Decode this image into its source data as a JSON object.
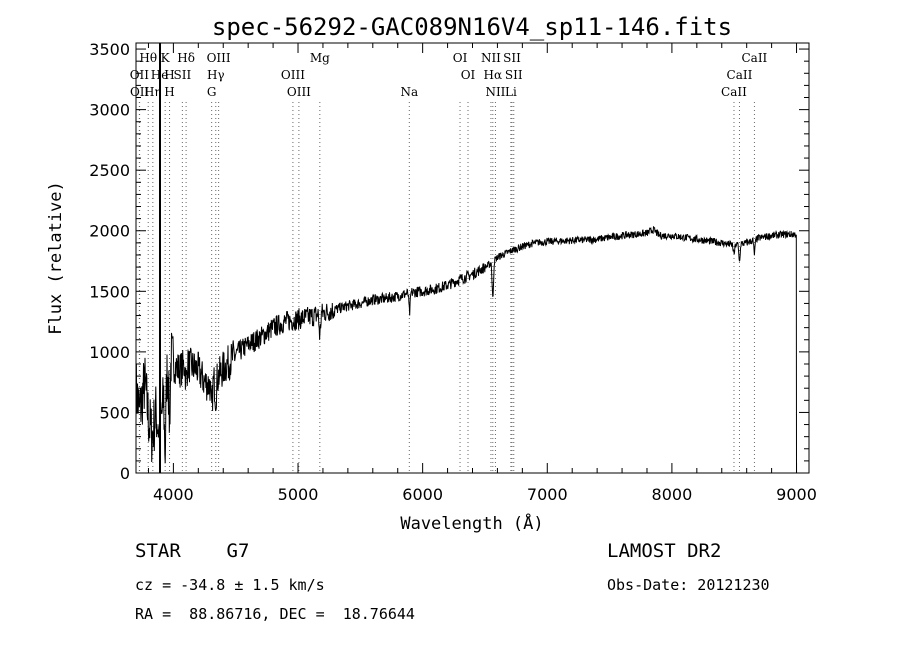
{
  "chart_data": {
    "type": "line",
    "title": "spec-56292-GAC089N16V4_sp11-146.fits",
    "xlabel": "Wavelength (Å)",
    "ylabel": "Flux (relative)",
    "xlim": [
      3700,
      9100
    ],
    "ylim": [
      0,
      3550
    ],
    "x_ticks": [
      4000,
      5000,
      6000,
      7000,
      8000,
      9000
    ],
    "x_tick_labels": [
      "4000",
      "5000",
      "6000",
      "7000",
      "8000",
      "9000"
    ],
    "y_ticks": [
      0,
      500,
      1000,
      1500,
      2000,
      2500,
      3000,
      3500
    ],
    "y_tick_labels": [
      "0",
      "500",
      "1000",
      "1500",
      "2000",
      "2500",
      "3000",
      "3500"
    ],
    "grid": false,
    "continuum": [
      [
        3700,
        700
      ],
      [
        3730,
        500
      ],
      [
        3770,
        750
      ],
      [
        3800,
        450
      ],
      [
        3830,
        300
      ],
      [
        3860,
        500
      ],
      [
        3890,
        320
      ],
      [
        3920,
        600
      ],
      [
        3950,
        820
      ],
      [
        3980,
        950
      ],
      [
        4000,
        900
      ],
      [
        4050,
        850
      ],
      [
        4100,
        900
      ],
      [
        4150,
        880
      ],
      [
        4200,
        850
      ],
      [
        4250,
        750
      ],
      [
        4300,
        720
      ],
      [
        4350,
        780
      ],
      [
        4400,
        860
      ],
      [
        4500,
        980
      ],
      [
        4600,
        1060
      ],
      [
        4700,
        1120
      ],
      [
        4800,
        1200
      ],
      [
        4900,
        1250
      ],
      [
        5000,
        1270
      ],
      [
        5100,
        1290
      ],
      [
        5200,
        1320
      ],
      [
        5300,
        1350
      ],
      [
        5400,
        1380
      ],
      [
        5500,
        1400
      ],
      [
        5600,
        1430
      ],
      [
        5700,
        1440
      ],
      [
        5800,
        1460
      ],
      [
        5900,
        1490
      ],
      [
        6000,
        1500
      ],
      [
        6100,
        1520
      ],
      [
        6200,
        1550
      ],
      [
        6300,
        1600
      ],
      [
        6400,
        1640
      ],
      [
        6500,
        1700
      ],
      [
        6550,
        1730
      ],
      [
        6600,
        1780
      ],
      [
        6700,
        1830
      ],
      [
        6800,
        1870
      ],
      [
        6900,
        1900
      ],
      [
        7000,
        1910
      ],
      [
        7200,
        1920
      ],
      [
        7400,
        1930
      ],
      [
        7600,
        1960
      ],
      [
        7800,
        1980
      ],
      [
        7850,
        2010
      ],
      [
        7900,
        1960
      ],
      [
        8000,
        1960
      ],
      [
        8200,
        1930
      ],
      [
        8400,
        1900
      ],
      [
        8500,
        1880
      ],
      [
        8600,
        1900
      ],
      [
        8700,
        1940
      ],
      [
        8800,
        1960
      ],
      [
        8900,
        1970
      ],
      [
        9000,
        1970
      ]
    ],
    "absorption_features": [
      {
        "x": 3934,
        "depth": 600
      },
      {
        "x": 3969,
        "depth": 500
      },
      {
        "x": 4102,
        "depth": 150
      },
      {
        "x": 4307,
        "depth": 250
      },
      {
        "x": 4340,
        "depth": 150
      },
      {
        "x": 5175,
        "depth": 200
      },
      {
        "x": 5895,
        "depth": 180
      },
      {
        "x": 6563,
        "depth": 330
      },
      {
        "x": 8498,
        "depth": 80
      },
      {
        "x": 8542,
        "depth": 150
      },
      {
        "x": 8662,
        "depth": 120
      }
    ],
    "line_markers": [
      {
        "label": "Hθ",
        "x": 3798,
        "row": 0
      },
      {
        "label": "K",
        "x": 3934,
        "row": 0
      },
      {
        "label": "Hδ",
        "x": 4102,
        "row": 0
      },
      {
        "label": "OIII",
        "x": 4363,
        "row": 0
      },
      {
        "label": "Mg",
        "x": 5175,
        "row": 0
      },
      {
        "label": "OI",
        "x": 6300,
        "row": 0
      },
      {
        "label": "NII",
        "x": 6548,
        "row": 0
      },
      {
        "label": "SII",
        "x": 6717,
        "row": 0
      },
      {
        "label": "CaII",
        "x": 8662,
        "row": 0
      },
      {
        "label": "OII",
        "x": 3727,
        "row": 1
      },
      {
        "label": "He",
        "x": 3889,
        "row": 1
      },
      {
        "label": "H",
        "x": 3969,
        "row": 1
      },
      {
        "label": "SII",
        "x": 4072,
        "row": 1
      },
      {
        "label": "Hγ",
        "x": 4340,
        "row": 1
      },
      {
        "label": "OIII",
        "x": 4959,
        "row": 1
      },
      {
        "label": "OI",
        "x": 6364,
        "row": 1
      },
      {
        "label": "Hα",
        "x": 6563,
        "row": 1
      },
      {
        "label": "SII",
        "x": 6731,
        "row": 1
      },
      {
        "label": "CaII",
        "x": 8542,
        "row": 1
      },
      {
        "label": "OII",
        "x": 3729,
        "row": 2
      },
      {
        "label": "Hη",
        "x": 3835,
        "row": 2
      },
      {
        "label": "H",
        "x": 3969,
        "row": 2
      },
      {
        "label": "G",
        "x": 4307,
        "row": 2
      },
      {
        "label": "OIII",
        "x": 5007,
        "row": 2
      },
      {
        "label": "Na",
        "x": 5893,
        "row": 2
      },
      {
        "label": "NII",
        "x": 6584,
        "row": 2
      },
      {
        "label": "Li",
        "x": 6708,
        "row": 2
      },
      {
        "label": "CaII",
        "x": 8498,
        "row": 2
      }
    ]
  },
  "info": {
    "object_class": "STAR",
    "subclass": "G7",
    "survey": "LAMOST DR2",
    "cz": "cz = -34.8 ± 1.5 km/s",
    "obs_date": "Obs-Date: 20121230",
    "ra_dec": "RA =  88.86716, DEC =  18.76644"
  }
}
